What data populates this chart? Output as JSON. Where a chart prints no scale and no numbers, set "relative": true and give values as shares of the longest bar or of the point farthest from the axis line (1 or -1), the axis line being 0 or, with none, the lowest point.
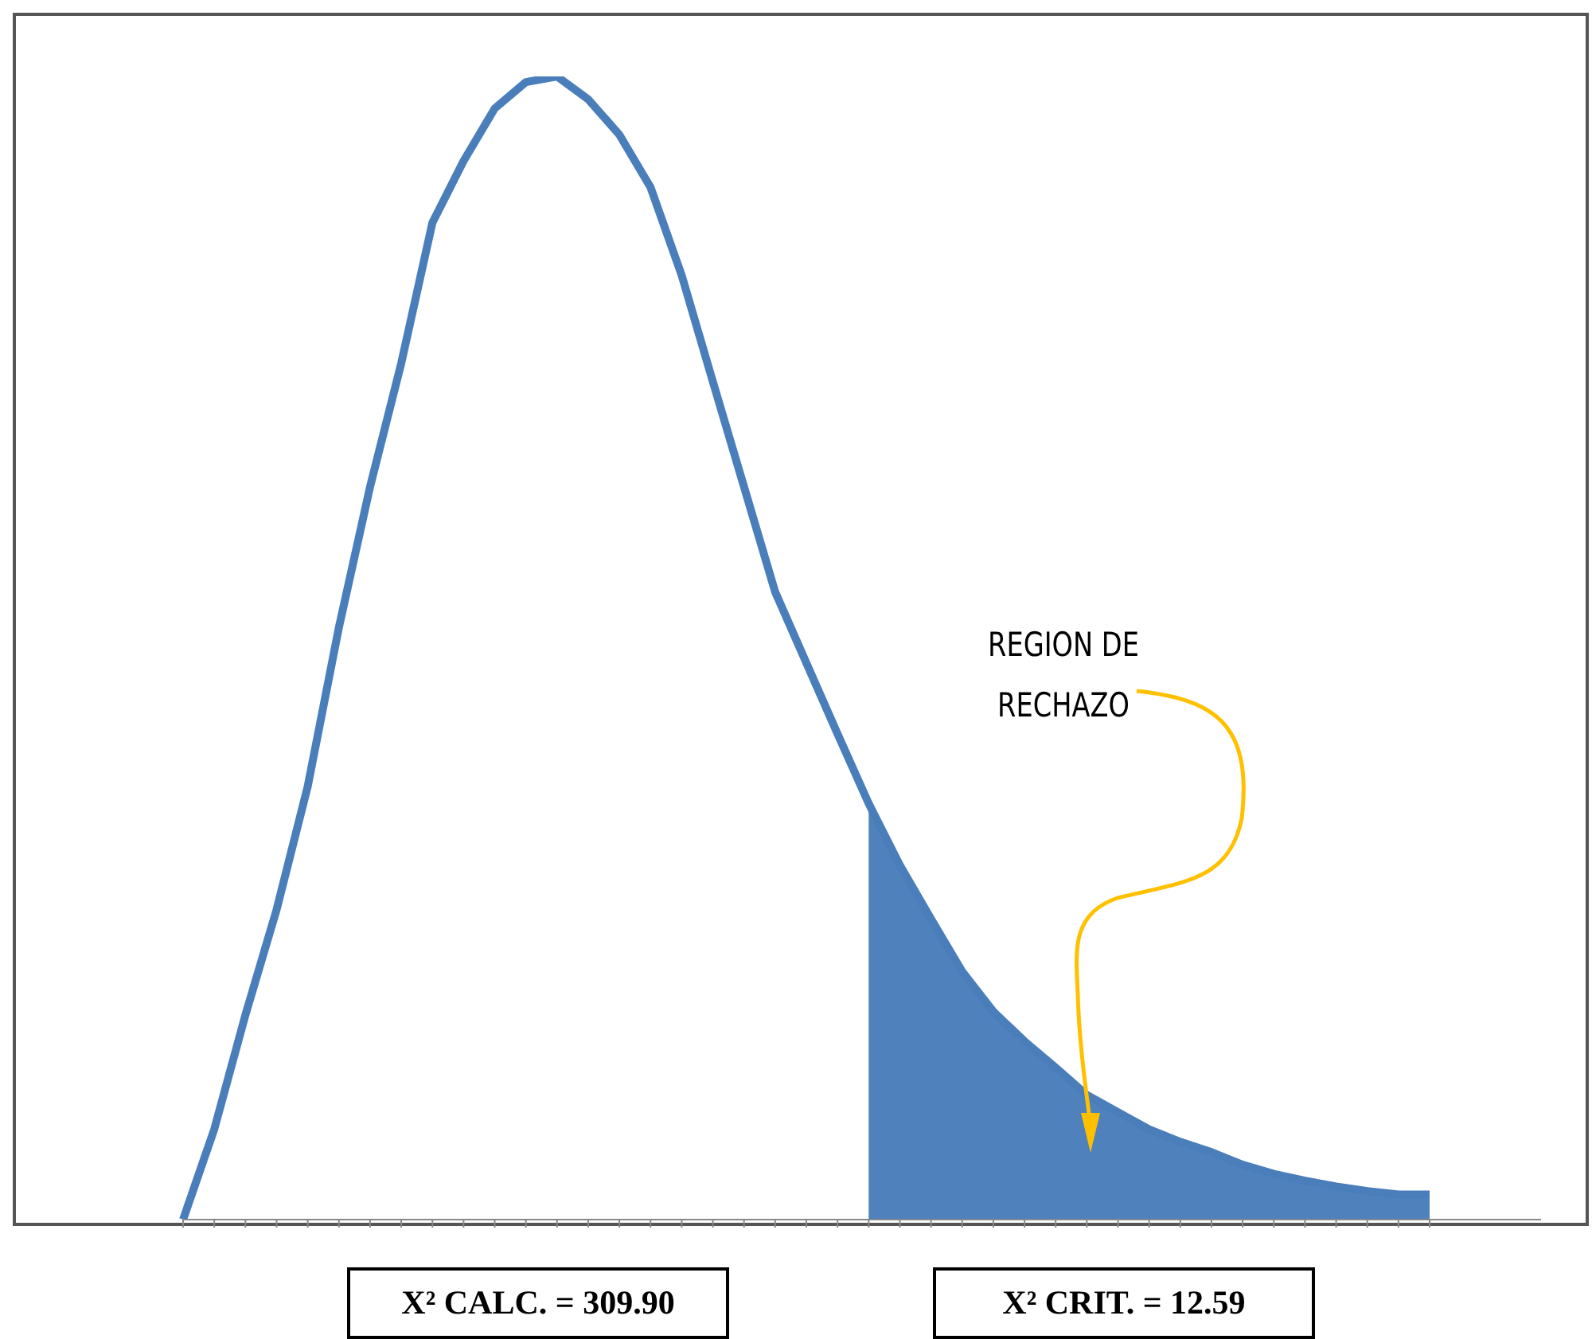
{
  "chart_data": {
    "type": "line",
    "relative": true,
    "categories": [
      null,
      null,
      null,
      null,
      null,
      null,
      null,
      null,
      null,
      null,
      null,
      null,
      null,
      null,
      null,
      null,
      null,
      null,
      null,
      null,
      null,
      null,
      null,
      null,
      null,
      null,
      null,
      null,
      null,
      null,
      null,
      null,
      null,
      null,
      null,
      null,
      null,
      null,
      null,
      null,
      null
    ],
    "series": [
      {
        "color": "#4a7ebb",
        "values": [
          0,
          0.079,
          0.179,
          0.271,
          0.379,
          0.518,
          0.641,
          0.749,
          0.872,
          0.926,
          0.972,
          0.995,
          1,
          0.98,
          0.949,
          0.903,
          0.826,
          0.733,
          0.641,
          0.549,
          0.487,
          0.425,
          0.364,
          0.31,
          0.263,
          0.217,
          0.182,
          0.156,
          0.133,
          0.109,
          0.094,
          0.079,
          0.068,
          0.059,
          0.048,
          0.04,
          0.034,
          0.029,
          0.025,
          0.022,
          0.022
        ]
      },
      {
        "type": "area",
        "color": "#4f81bd",
        "values": [
          null,
          null,
          null,
          null,
          null,
          null,
          null,
          null,
          null,
          null,
          null,
          null,
          null,
          null,
          null,
          null,
          null,
          null,
          null,
          null,
          null,
          null,
          0.364,
          0.31,
          0.263,
          0.217,
          0.182,
          0.156,
          0.133,
          0.109,
          0.094,
          0.079,
          0.068,
          0.059,
          0.048,
          0.04,
          0.034,
          0.029,
          0.025,
          0.022,
          0.022
        ]
      }
    ],
    "annotations": [
      "REGION DE\nRECHAZO",
      "X² CALC. = 309.90",
      "X² CRIT. = 12.59"
    ],
    "grid": false,
    "legend": false
  }
}
